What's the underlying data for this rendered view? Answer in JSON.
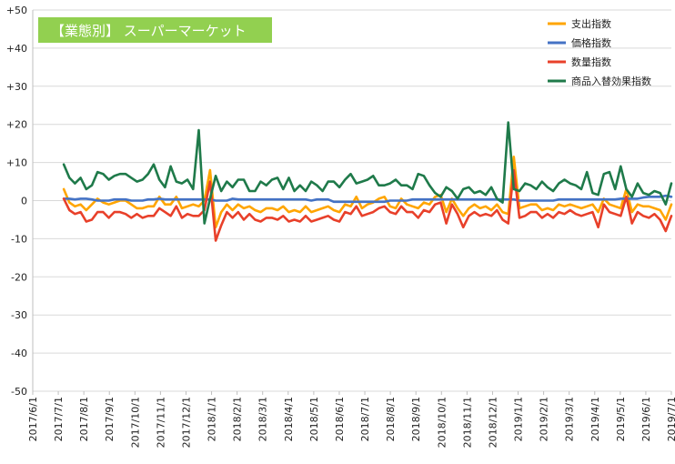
{
  "chart_data": {
    "type": "line",
    "title": "【業態別】 スーパーマーケット",
    "title_bg_color": "#92d050",
    "title_text_color": "#ffffff",
    "xlabel": "",
    "ylabel": "",
    "ylim": [
      -50,
      50
    ],
    "yticks": [
      50,
      40,
      30,
      20,
      10,
      0,
      -10,
      -20,
      -30,
      -40,
      -50
    ],
    "ytick_labels": [
      "+50",
      "+40",
      "+30",
      "+20",
      "+10",
      "0",
      "-10",
      "-20",
      "-30",
      "-40",
      "-50"
    ],
    "grid": true,
    "legend_position": "top-right",
    "x_tick_labels": [
      "2017/6/1",
      "2017/7/1",
      "2017/8/1",
      "2017/9/1",
      "2017/10/1",
      "2017/11/1",
      "2017/12/1",
      "2018/1/1",
      "2018/2/1",
      "2018/3/1",
      "2018/4/1",
      "2018/5/1",
      "2018/6/1",
      "2018/7/1",
      "2018/8/1",
      "2018/9/1",
      "2018/10/1",
      "2018/11/1",
      "2018/12/1",
      "2019/1/1",
      "2019/2/1",
      "2019/3/1",
      "2019/4/1",
      "2019/5/1",
      "2019/6/1",
      "2019/7/1"
    ],
    "series": [
      {
        "name": "支出指数",
        "color": "#ffa500",
        "values": [
          3.0,
          -0.5,
          -1.5,
          -1.0,
          -2.5,
          -1.0,
          0.5,
          -0.5,
          -1.0,
          -0.5,
          0.0,
          0.0,
          -1.0,
          -2.0,
          -2.0,
          -1.5,
          -1.5,
          1.0,
          -1.0,
          -1.0,
          1.0,
          -2.0,
          -1.5,
          -1.0,
          -1.5,
          0.0,
          8.0,
          -7.0,
          -3.0,
          -1.0,
          -2.5,
          -1.0,
          -2.0,
          -1.5,
          -2.5,
          -3.0,
          -2.0,
          -2.0,
          -2.5,
          -1.5,
          -3.0,
          -2.5,
          -3.0,
          -1.5,
          -3.0,
          -2.5,
          -2.0,
          -1.5,
          -2.5,
          -3.0,
          -1.0,
          -1.5,
          1.0,
          -2.0,
          -1.0,
          -0.5,
          0.5,
          1.0,
          -1.5,
          -2.0,
          0.5,
          -1.0,
          -1.5,
          -2.0,
          -0.5,
          -1.0,
          1.0,
          1.5,
          -3.0,
          0.5,
          -2.0,
          -4.0,
          -2.0,
          -1.0,
          -2.0,
          -1.5,
          -2.5,
          -1.0,
          -3.0,
          -3.5,
          11.5,
          -2.0,
          -1.5,
          -1.0,
          -1.0,
          -2.5,
          -2.0,
          -2.5,
          -1.0,
          -1.5,
          -1.0,
          -1.5,
          -2.0,
          -1.5,
          -1.0,
          -3.0,
          0.5,
          -1.0,
          -1.5,
          -2.0,
          3.0,
          -3.0,
          -1.0,
          -1.5,
          -1.5,
          -2.0,
          -2.5,
          -5.0,
          -1.0
        ]
      },
      {
        "name": "価格指数",
        "color": "#4472c4",
        "values": [
          0.5,
          0.5,
          0.3,
          0.5,
          0.5,
          0.3,
          0.0,
          0.0,
          0.0,
          0.3,
          0.3,
          0.3,
          0.0,
          0.0,
          0.0,
          0.3,
          0.3,
          0.5,
          0.3,
          0.3,
          0.3,
          0.3,
          0.3,
          0.3,
          0.3,
          0.3,
          0.3,
          0.0,
          0.0,
          0.0,
          0.5,
          0.3,
          0.3,
          0.3,
          0.3,
          0.3,
          0.3,
          0.3,
          0.3,
          0.3,
          0.3,
          0.3,
          0.3,
          0.3,
          0.0,
          0.3,
          0.3,
          0.3,
          -0.3,
          -0.3,
          -0.3,
          -0.3,
          -0.3,
          -0.3,
          -0.3,
          -0.3,
          -0.3,
          -0.3,
          0.0,
          0.0,
          0.0,
          0.0,
          0.3,
          0.3,
          0.3,
          0.3,
          0.3,
          0.3,
          0.3,
          0.3,
          0.3,
          0.3,
          0.3,
          0.3,
          0.3,
          0.3,
          0.3,
          0.3,
          0.3,
          0.3,
          0.3,
          0.0,
          0.0,
          0.0,
          0.0,
          0.0,
          0.0,
          0.0,
          0.3,
          0.3,
          0.3,
          0.3,
          0.3,
          0.3,
          0.3,
          0.3,
          0.3,
          0.3,
          0.3,
          0.5,
          0.5,
          0.5,
          0.5,
          0.8,
          1.0,
          1.0,
          1.0,
          1.3,
          1.0
        ]
      },
      {
        "name": "数量指数",
        "color": "#e8402a",
        "values": [
          0.5,
          -2.5,
          -3.5,
          -3.0,
          -5.5,
          -5.0,
          -3.0,
          -3.0,
          -4.5,
          -3.0,
          -3.0,
          -3.5,
          -4.5,
          -3.5,
          -4.5,
          -4.0,
          -4.0,
          -2.0,
          -3.0,
          -4.0,
          -1.5,
          -4.5,
          -3.5,
          -4.0,
          -4.0,
          -2.5,
          5.0,
          -10.5,
          -6.5,
          -3.0,
          -4.5,
          -3.0,
          -5.0,
          -3.5,
          -5.0,
          -5.5,
          -4.5,
          -4.5,
          -5.0,
          -4.0,
          -5.5,
          -5.0,
          -5.5,
          -4.0,
          -5.5,
          -5.0,
          -4.5,
          -4.0,
          -5.0,
          -5.5,
          -3.0,
          -3.5,
          -1.5,
          -4.0,
          -3.5,
          -3.0,
          -2.0,
          -1.5,
          -3.0,
          -3.5,
          -1.5,
          -3.0,
          -3.0,
          -4.5,
          -2.5,
          -3.0,
          -1.0,
          -0.5,
          -6.0,
          -1.0,
          -3.5,
          -7.0,
          -4.0,
          -3.0,
          -4.0,
          -3.5,
          -4.0,
          -2.5,
          -5.0,
          -6.0,
          8.0,
          -4.5,
          -4.0,
          -3.0,
          -3.0,
          -4.5,
          -3.5,
          -4.5,
          -3.0,
          -3.5,
          -2.5,
          -3.5,
          -4.0,
          -3.5,
          -3.0,
          -7.0,
          -1.0,
          -3.0,
          -3.5,
          -4.0,
          1.0,
          -6.0,
          -3.0,
          -4.0,
          -4.5,
          -3.5,
          -5.0,
          -8.0,
          -4.0
        ]
      },
      {
        "name": "商品入替効果指数",
        "color": "#1f7a4a",
        "values": [
          9.5,
          6.0,
          4.5,
          6.0,
          3.0,
          4.0,
          7.5,
          7.0,
          5.5,
          6.5,
          7.0,
          7.0,
          6.0,
          5.0,
          5.5,
          7.0,
          9.5,
          5.5,
          3.5,
          9.0,
          5.0,
          4.5,
          5.5,
          3.0,
          18.5,
          -6.0,
          0.5,
          6.5,
          2.5,
          5.0,
          3.5,
          5.5,
          5.5,
          2.5,
          2.5,
          5.0,
          4.0,
          5.5,
          6.0,
          3.0,
          6.0,
          2.5,
          4.0,
          2.5,
          5.0,
          4.0,
          2.5,
          5.0,
          5.0,
          3.5,
          5.5,
          7.0,
          4.5,
          5.0,
          5.5,
          6.5,
          4.0,
          4.0,
          4.5,
          5.5,
          4.0,
          4.0,
          3.0,
          7.0,
          6.5,
          4.0,
          2.0,
          1.0,
          3.5,
          2.5,
          0.5,
          3.0,
          3.5,
          2.0,
          2.5,
          1.5,
          3.5,
          0.5,
          -0.5,
          20.5,
          3.0,
          2.5,
          4.5,
          4.0,
          3.0,
          5.0,
          3.5,
          2.5,
          4.5,
          5.5,
          4.5,
          4.0,
          3.0,
          7.5,
          2.0,
          1.5,
          7.0,
          7.5,
          3.0,
          9.0,
          3.0,
          1.0,
          4.5,
          2.0,
          1.5,
          2.5,
          2.0,
          -1.0,
          4.5
        ]
      }
    ]
  }
}
